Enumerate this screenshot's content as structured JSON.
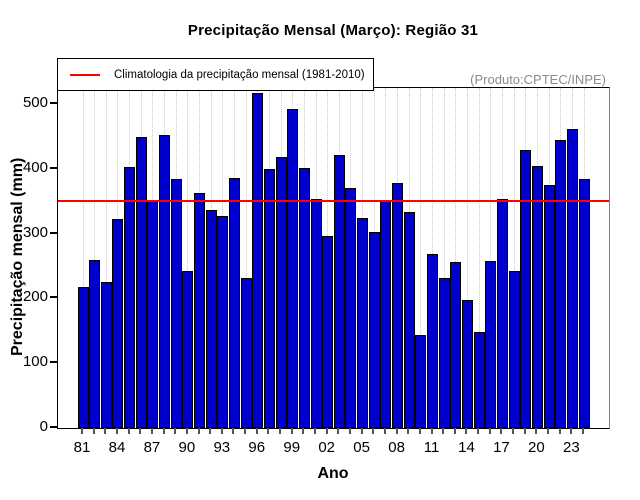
{
  "title": "Precipitação Mensal (Março): Região 31",
  "legend": {
    "label": "Climatologia da precipitação mensal (1981-2010)"
  },
  "annotation": "(Produto:CPTEC/INPE)",
  "y_axis": {
    "label": "Precipitação mensal (mm)",
    "ticks": [
      0,
      100,
      200,
      300,
      400,
      500
    ]
  },
  "x_axis": {
    "label": "Ano",
    "tick_every": 3,
    "tick_labels": [
      "81",
      "84",
      "87",
      "90",
      "93",
      "96",
      "99",
      "02",
      "05",
      "08",
      "11",
      "14",
      "17",
      "20",
      "23"
    ]
  },
  "chart_data": {
    "type": "bar",
    "x": [
      1981,
      1982,
      1983,
      1984,
      1985,
      1986,
      1987,
      1988,
      1989,
      1990,
      1991,
      1992,
      1993,
      1994,
      1995,
      1996,
      1997,
      1998,
      1999,
      2000,
      2001,
      2002,
      2003,
      2004,
      2005,
      2006,
      2007,
      2008,
      2009,
      2010,
      2011,
      2012,
      2013,
      2014,
      2015,
      2016,
      2017,
      2018,
      2019,
      2020,
      2021,
      2022,
      2023,
      2024
    ],
    "values": [
      218,
      260,
      225,
      322,
      403,
      449,
      352,
      453,
      384,
      242,
      363,
      337,
      328,
      386,
      232,
      517,
      400,
      419,
      492,
      402,
      353,
      297,
      422,
      371,
      324,
      303,
      351,
      378,
      334,
      144,
      269,
      232,
      257,
      197,
      148,
      258,
      353,
      243,
      429,
      404,
      376,
      445,
      462,
      384
    ],
    "climatology": 350,
    "title": "Precipitação Mensal (Março): Região 31",
    "xlabel": "Ano",
    "ylabel": "Precipitação mensal (mm)",
    "ylim": [
      0,
      525
    ],
    "bar_color": "#0000CC",
    "climatology_color": "#FF0000",
    "legend_entry": "Climatologia da precipitação mensal (1981-2010)",
    "grid": "vertical-dotted",
    "legend_position": "top-left"
  }
}
